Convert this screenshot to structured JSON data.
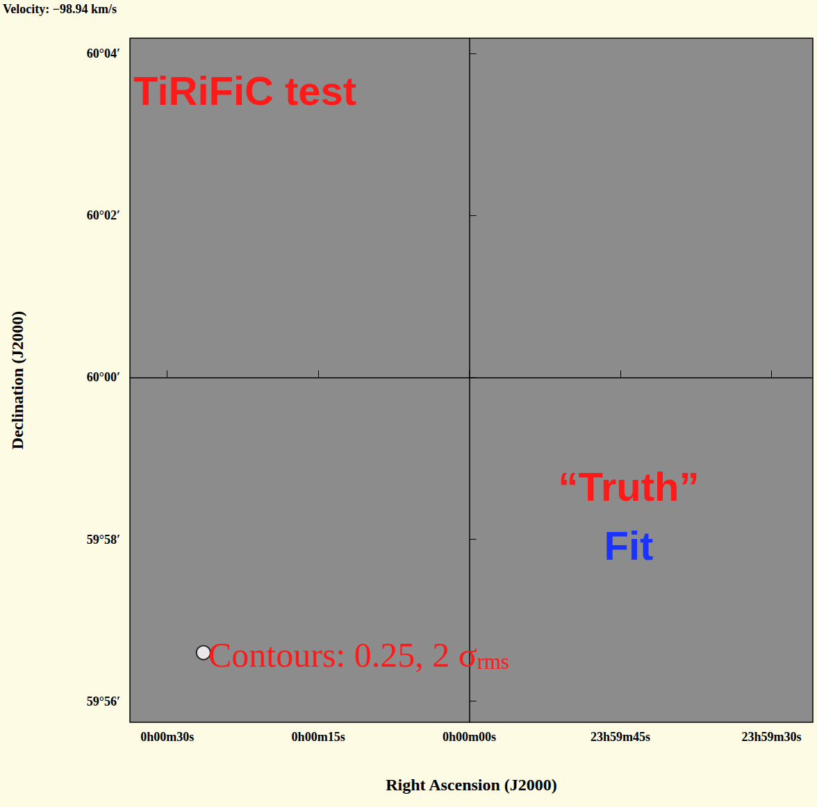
{
  "chart_data": {
    "type": "image",
    "title": "Velocity: −98.94 km/s",
    "xlabel": "Right Ascension (J2000)",
    "ylabel": "Declination (J2000)",
    "xlim": [
      33.7,
      -34.1
    ],
    "ylim": [
      -4.26,
      4.19
    ],
    "xticks": [
      {
        "value": 30,
        "label": "0h00m30s"
      },
      {
        "value": 15,
        "label": "0h00m15s"
      },
      {
        "value": 0,
        "label": "0h00m00s"
      },
      {
        "value": -15,
        "label": "23h59m45s"
      },
      {
        "value": -30,
        "label": "23h59m30s"
      }
    ],
    "yticks": [
      {
        "value": -4,
        "label": "59°56′"
      },
      {
        "value": -2,
        "label": "59°58′"
      },
      {
        "value": 0,
        "label": "60°00′"
      },
      {
        "value": 2,
        "label": "60°02′"
      },
      {
        "value": 4,
        "label": "60°04′"
      }
    ],
    "grid": false,
    "contour_points": [
      {
        "x": 26.4,
        "y": -3.4
      }
    ],
    "annotations": [
      {
        "text": "TiRiFiC test",
        "color": "#ff1a1a"
      },
      {
        "text": "“Truth”",
        "color": "#ff1a1a"
      },
      {
        "text": "Fit",
        "color": "#1a33ff"
      },
      {
        "text": "Contours: 0.25, 2 σ",
        "sub": "rms",
        "color": "#ff1a1a"
      }
    ]
  }
}
